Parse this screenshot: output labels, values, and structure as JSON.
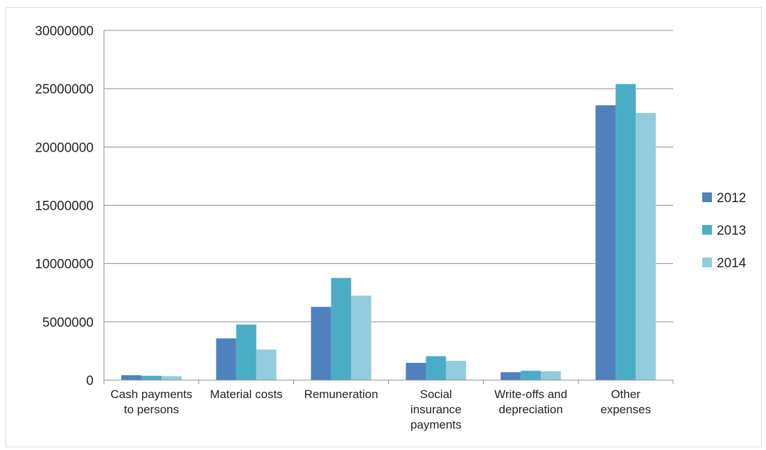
{
  "chart_data": {
    "type": "bar",
    "categories": [
      [
        "Cash payments",
        "to persons"
      ],
      [
        "Material costs"
      ],
      [
        "Remuneration"
      ],
      [
        "Social",
        "insurance",
        "payments"
      ],
      [
        "Write-offs and",
        "depreciation"
      ],
      [
        "Other",
        "expenses"
      ]
    ],
    "series": [
      {
        "name": "2012",
        "color": "#4f81bd",
        "values": [
          420000,
          3580000,
          6280000,
          1480000,
          680000,
          23580000
        ]
      },
      {
        "name": "2013",
        "color": "#4bacc6",
        "values": [
          370000,
          4760000,
          8760000,
          2050000,
          800000,
          25400000
        ]
      },
      {
        "name": "2014",
        "color": "#93cddd",
        "values": [
          340000,
          2620000,
          7250000,
          1650000,
          760000,
          22920000
        ]
      }
    ],
    "ylim": [
      0,
      30000000
    ],
    "yticks": [
      "0",
      "5000000",
      "10000000",
      "15000000",
      "20000000",
      "25000000",
      "30000000"
    ],
    "grid": true,
    "legend_position": "right"
  }
}
